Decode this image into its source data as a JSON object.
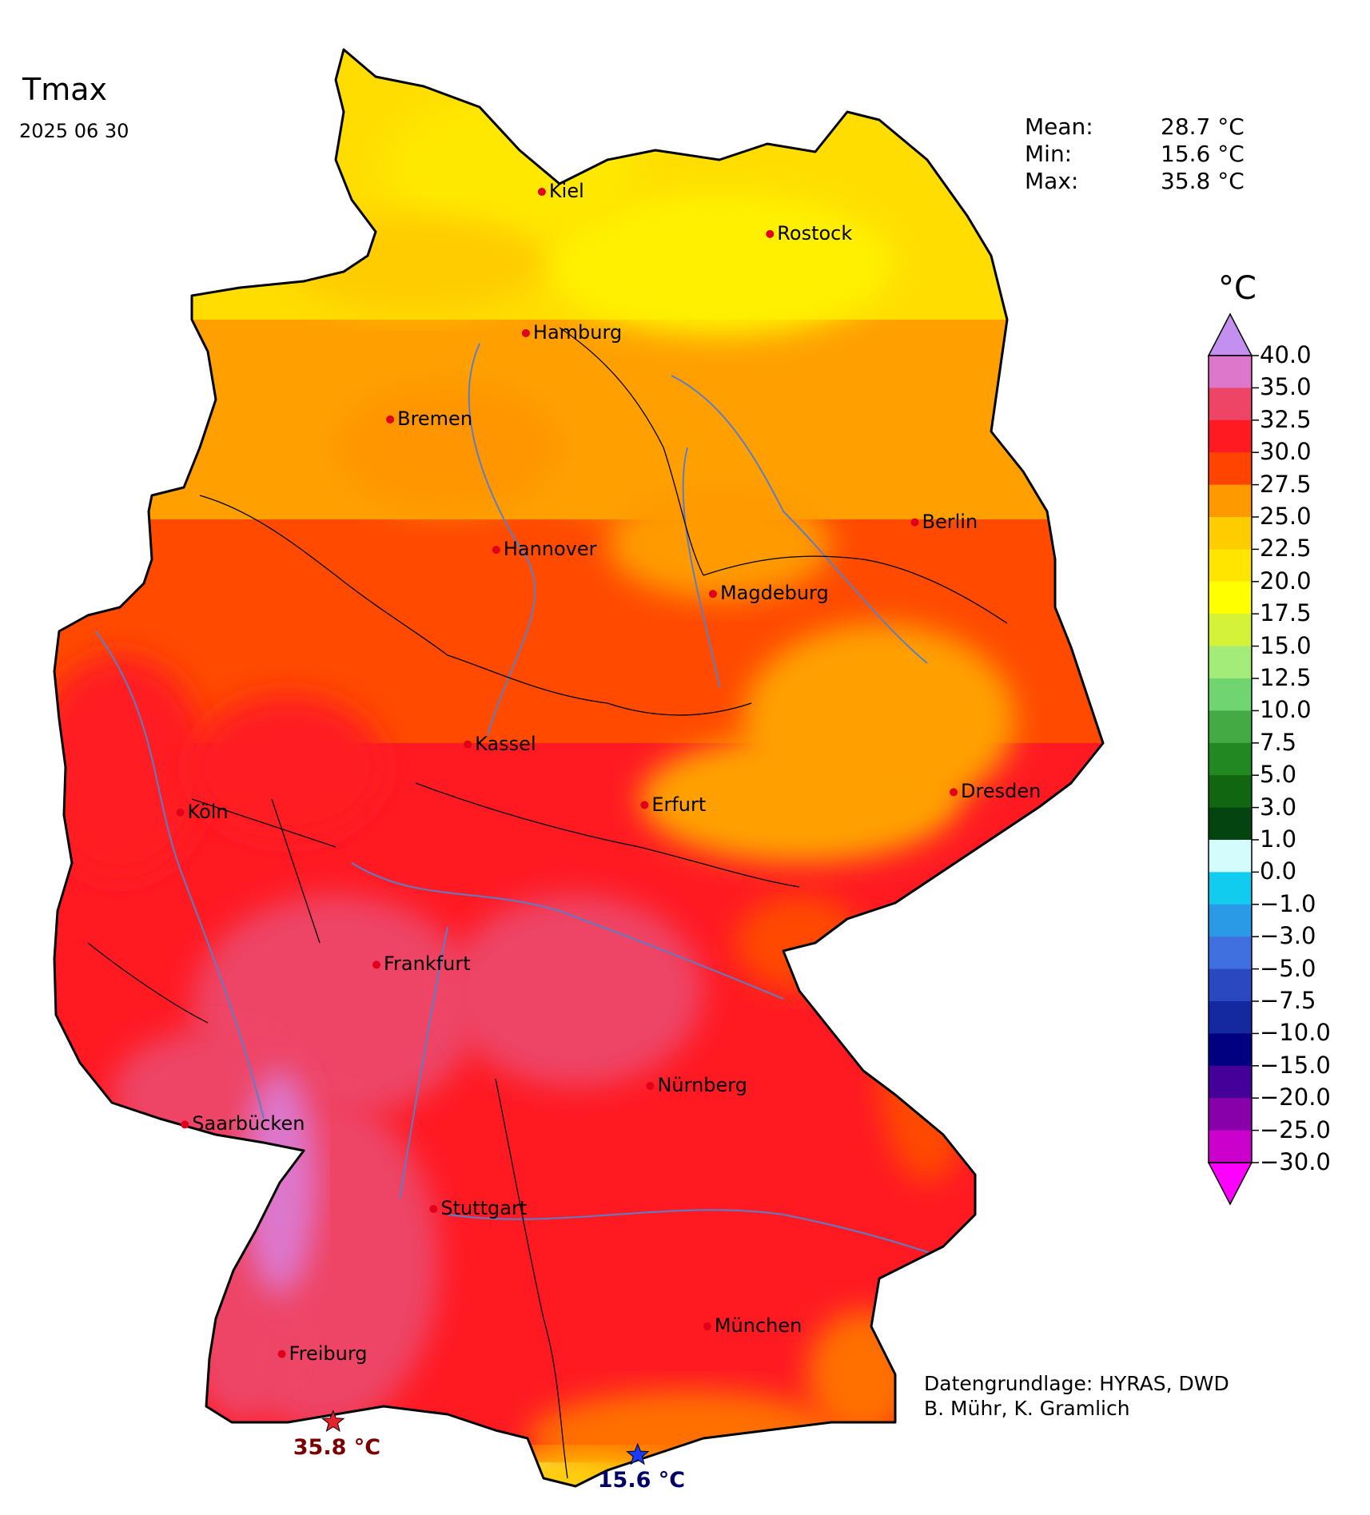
{
  "title": "Tmax",
  "date": "2025 06 30",
  "stats": [
    {
      "label": "Mean:",
      "value": "28.7 °C"
    },
    {
      "label": "Min:",
      "value": "15.6 °C"
    },
    {
      "label": "Max:",
      "value": "35.8 °C"
    }
  ],
  "colorbar": {
    "unit": "°C",
    "ticks": [
      "40.0",
      "35.0",
      "32.5",
      "30.0",
      "27.5",
      "25.0",
      "22.5",
      "20.0",
      "17.5",
      "15.0",
      "12.5",
      "10.0",
      "7.5",
      "5.0",
      "3.0",
      "1.0",
      "0.0",
      "−1.0",
      "−3.0",
      "−5.0",
      "−7.5",
      "−10.0",
      "−15.0",
      "−20.0",
      "−25.0",
      "−30.0"
    ],
    "colors_top_to_bottom": [
      "#dd77cc",
      "#ee4466",
      "#ff1a22",
      "#ff4400",
      "#ff9900",
      "#ffcc00",
      "#ffe600",
      "#ffff00",
      "#d4f238",
      "#a4ec78",
      "#70d470",
      "#44aa44",
      "#228822",
      "#116611",
      "#044410",
      "#d4fcfc",
      "#11ccee",
      "#2a9ae6",
      "#4070e0",
      "#2a48c0",
      "#1428a0",
      "#000080",
      "#440099",
      "#8800aa",
      "#cc00cc"
    ],
    "over_color": "#c490f0",
    "under_color": "#ff00ff"
  },
  "cities": [
    {
      "name": "Kiel",
      "x": 10.13,
      "y": 54.32
    },
    {
      "name": "Rostock",
      "x": 12.13,
      "y": 54.09
    },
    {
      "name": "Hamburg",
      "x": 9.99,
      "y": 53.55
    },
    {
      "name": "Bremen",
      "x": 8.8,
      "y": 53.08
    },
    {
      "name": "Berlin",
      "x": 13.4,
      "y": 52.52
    },
    {
      "name": "Hannover",
      "x": 9.73,
      "y": 52.37
    },
    {
      "name": "Magdeburg",
      "x": 11.63,
      "y": 52.13
    },
    {
      "name": "Kassel",
      "x": 9.48,
      "y": 51.31
    },
    {
      "name": "Köln",
      "x": 6.96,
      "y": 50.94
    },
    {
      "name": "Erfurt",
      "x": 11.03,
      "y": 50.98
    },
    {
      "name": "Dresden",
      "x": 13.74,
      "y": 51.05
    },
    {
      "name": "Frankfurt",
      "x": 8.68,
      "y": 50.11
    },
    {
      "name": "Nürnberg",
      "x": 11.08,
      "y": 49.45
    },
    {
      "name": "Saarbücken",
      "x": 7.0,
      "y": 49.24
    },
    {
      "name": "Stuttgart",
      "x": 9.18,
      "y": 48.78
    },
    {
      "name": "München",
      "x": 11.58,
      "y": 48.14
    },
    {
      "name": "Freiburg",
      "x": 7.85,
      "y": 47.99
    }
  ],
  "extremes": {
    "max": {
      "label": "35.8 °C",
      "x": 8.3,
      "y": 47.62
    },
    "min": {
      "label": "15.6 °C",
      "x": 10.97,
      "y": 47.44
    }
  },
  "credit": {
    "line1": "Datengrundlage: HYRAS, DWD",
    "line2": " B. Mühr, K. Gramlich"
  }
}
